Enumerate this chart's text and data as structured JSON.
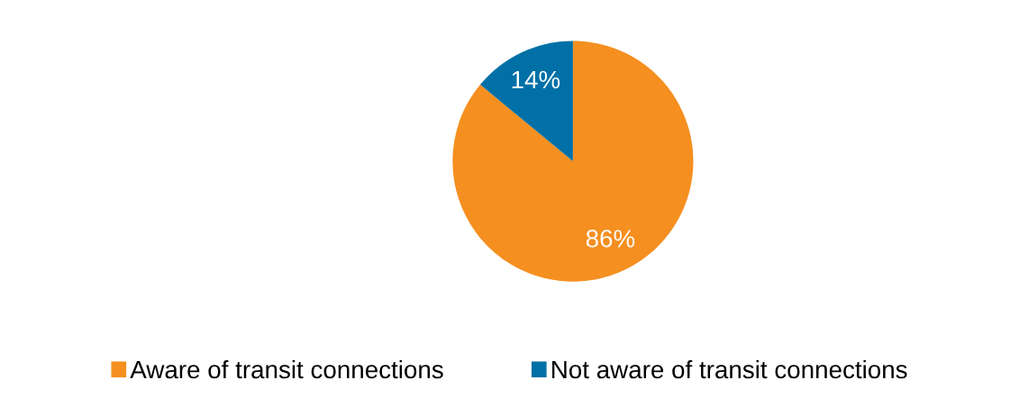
{
  "chart_data": {
    "type": "pie",
    "categories": [
      "Aware of transit connections",
      "Not aware of transit connections"
    ],
    "values": [
      86,
      14
    ],
    "colors": [
      "#f58f20",
      "#0070a6"
    ],
    "value_labels": [
      "86%",
      "14%"
    ],
    "legend": "bottom"
  }
}
